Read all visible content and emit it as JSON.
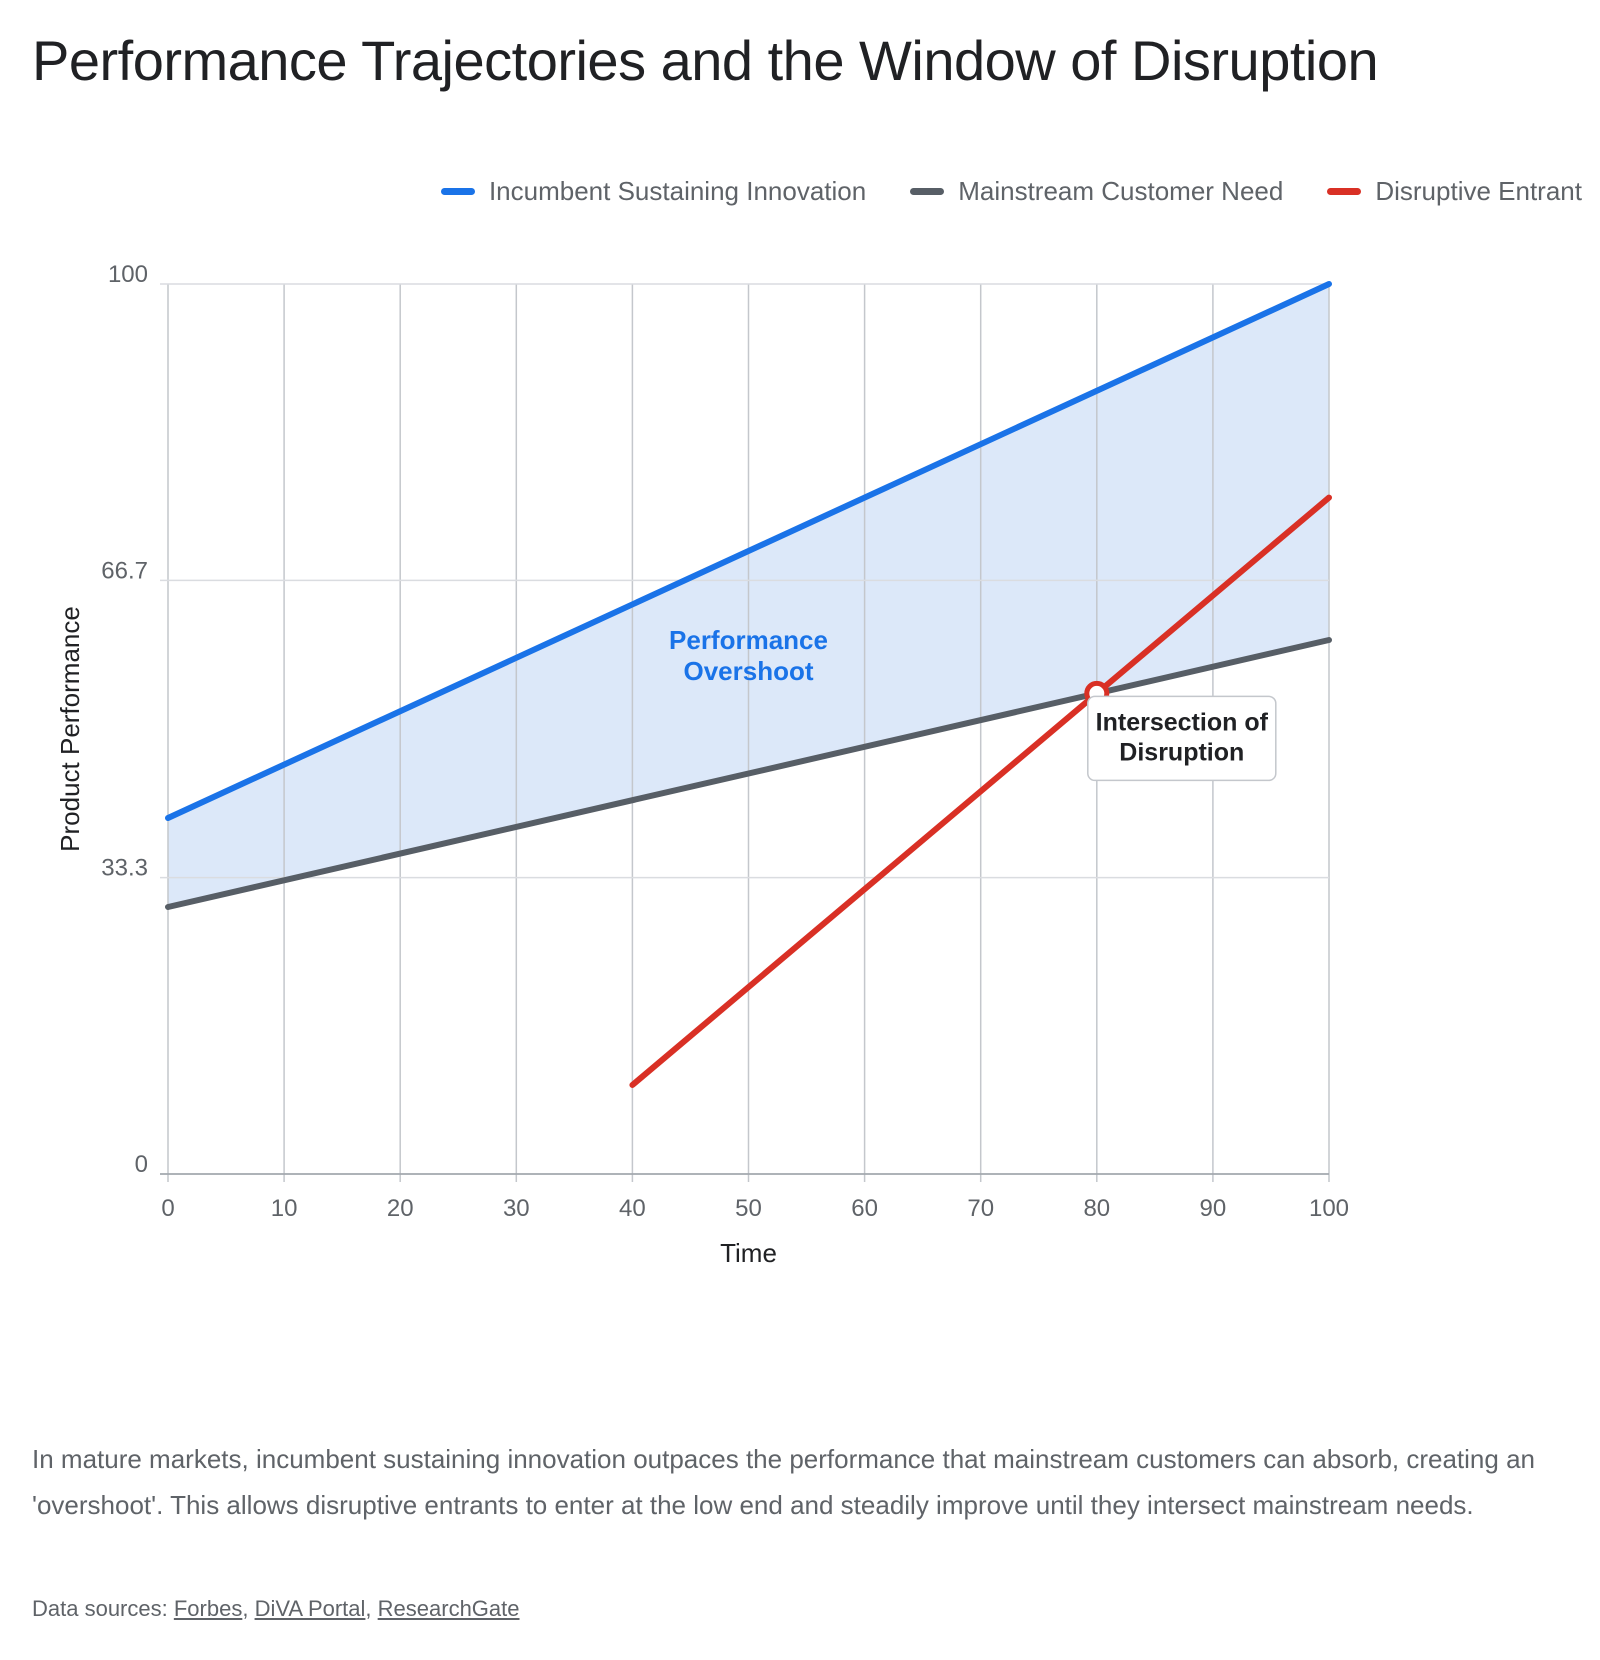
{
  "page": {
    "title": "Performance Trajectories and the Window of Disruption",
    "description": "In mature markets, incumbent sustaining innovation outpaces the performance that mainstream customers can absorb, creating an 'overshoot'. This allows disruptive entrants to enter at the low end and steadily improve until they intersect mainstream needs.",
    "sources_label": "Data sources: ",
    "sources": [
      "Forbes",
      "DiVA Portal",
      "ResearchGate"
    ]
  },
  "chart_data": {
    "type": "line",
    "title": "Performance Trajectories and the Window of Disruption",
    "xlabel": "Time",
    "ylabel": "Product Performance",
    "xlim": [
      0,
      100
    ],
    "ylim": [
      0,
      100
    ],
    "x_ticks": [
      0,
      10,
      20,
      30,
      40,
      50,
      60,
      70,
      80,
      90,
      100
    ],
    "x_tick_labels": [
      "0",
      "10",
      "20",
      "30",
      "40",
      "50",
      "60",
      "70",
      "80",
      "90",
      "100"
    ],
    "y_ticks": [
      0,
      33.3,
      66.7,
      100
    ],
    "y_tick_labels": [
      "0",
      "33.3",
      "66.7",
      "100"
    ],
    "grid": true,
    "legend_position": "top-right",
    "series": [
      {
        "name": "Incumbent Sustaining Innovation",
        "color": "#1a73e8",
        "x": [
          0,
          100
        ],
        "y": [
          40,
          100
        ]
      },
      {
        "name": "Mainstream Customer Need",
        "color": "#575e66",
        "x": [
          0,
          100
        ],
        "y": [
          30,
          60
        ]
      },
      {
        "name": "Disruptive Entrant",
        "color": "#d93025",
        "x": [
          40,
          100
        ],
        "y": [
          10,
          76
        ]
      }
    ],
    "shaded_region": {
      "label": "Performance Overshoot",
      "between": [
        "Incumbent Sustaining Innovation",
        "Mainstream Customer Need"
      ],
      "fill_color": "#dce8f9",
      "label_color": "#1a73e8",
      "label_at": [
        50,
        59
      ]
    },
    "annotations": [
      {
        "label": "Intersection of Disruption",
        "x": 80,
        "y": 54,
        "marker_color": "#d93025"
      }
    ]
  }
}
